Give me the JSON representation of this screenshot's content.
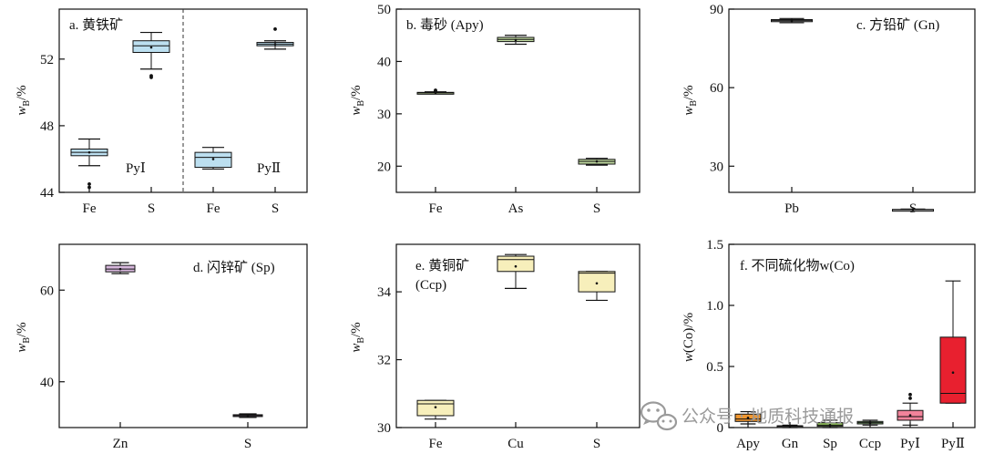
{
  "watermark": {
    "text": "公众号 · 地质科技通报",
    "icon": "wechat-icon"
  },
  "chart_data": [
    {
      "id": "a",
      "type": "box",
      "title": "a. 黄铁矿",
      "ylabel": {
        "var": "w",
        "sub": "B",
        "unit": "/%"
      },
      "ylim": [
        44,
        55
      ],
      "yticks": [
        44,
        48,
        52
      ],
      "grid": false,
      "divider": true,
      "groups": [
        {
          "label": "PyⅠ",
          "between": [
            0,
            1
          ]
        },
        {
          "label": "PyⅡ",
          "between": [
            2,
            3
          ]
        }
      ],
      "categories": [
        "Fe",
        "S",
        "Fe",
        "S"
      ],
      "series": [
        {
          "group": "PyⅠ",
          "color": "#bcdff0",
          "boxes": [
            {
              "category": "Fe",
              "min": 45.6,
              "q1": 46.2,
              "median": 46.4,
              "q3": 46.6,
              "max": 47.2,
              "mean": 46.4,
              "outliers": [
                44.5,
                44.3
              ]
            },
            {
              "category": "S",
              "min": 51.4,
              "q1": 52.4,
              "median": 52.8,
              "q3": 53.1,
              "max": 53.6,
              "mean": 52.7,
              "outliers": [
                51.0,
                50.9
              ]
            }
          ]
        },
        {
          "group": "PyⅡ",
          "color": "#bcdff0",
          "boxes": [
            {
              "category": "Fe",
              "min": 45.4,
              "q1": 45.5,
              "median": 46.1,
              "q3": 46.4,
              "max": 46.7,
              "mean": 46.0,
              "outliers": []
            },
            {
              "category": "S",
              "min": 52.6,
              "q1": 52.8,
              "median": 52.9,
              "q3": 53.0,
              "max": 53.1,
              "mean": 52.9,
              "outliers": [
                53.8
              ]
            }
          ]
        }
      ]
    },
    {
      "id": "b",
      "type": "box",
      "title": "b. 毒砂 (Apy)",
      "ylabel": {
        "var": "w",
        "sub": "B",
        "unit": "/%"
      },
      "ylim": [
        15,
        50
      ],
      "yticks": [
        20,
        30,
        40,
        50
      ],
      "grid": false,
      "categories": [
        "Fe",
        "As",
        "S"
      ],
      "series": [
        {
          "color": "#c5dfa4",
          "boxes": [
            {
              "category": "Fe",
              "min": 33.9,
              "q1": 33.95,
              "median": 34.0,
              "q3": 34.1,
              "max": 34.2,
              "mean": 34.0,
              "outliers": [
                34.5,
                34.3
              ]
            },
            {
              "category": "As",
              "min": 43.3,
              "q1": 43.8,
              "median": 44.2,
              "q3": 44.6,
              "max": 45.0,
              "mean": 44.1,
              "outliers": []
            },
            {
              "category": "S",
              "min": 20.2,
              "q1": 20.4,
              "median": 20.9,
              "q3": 21.3,
              "max": 21.5,
              "mean": 20.9,
              "outliers": []
            }
          ]
        }
      ]
    },
    {
      "id": "c",
      "type": "box",
      "title": "c. 方铅矿 (Gn)",
      "ylabel": {
        "var": "w",
        "sub": "B",
        "unit": "/%"
      },
      "ylim": [
        20,
        90
      ],
      "yticks": [
        30,
        60,
        90
      ],
      "grid": false,
      "categories": [
        "Pb",
        "S"
      ],
      "series": [
        {
          "color": "#e8e8e8",
          "boxes": [
            {
              "category": "Pb",
              "min": 84.8,
              "q1": 85.2,
              "median": 85.6,
              "q3": 86.0,
              "max": 86.4,
              "mean": 85.6,
              "outliers": []
            },
            {
              "category": "S",
              "min": 13.2,
              "q1": 13.3,
              "median": 13.4,
              "q3": 13.5,
              "max": 13.6,
              "mean": 13.4,
              "outliers": []
            }
          ]
        }
      ]
    },
    {
      "id": "d",
      "type": "box",
      "title": "d. 闪锌矿 (Sp)",
      "ylabel": {
        "var": "w",
        "sub": "B",
        "unit": "/%"
      },
      "ylim": [
        30,
        70
      ],
      "yticks": [
        40,
        60
      ],
      "grid": false,
      "categories": [
        "Zn",
        "S"
      ],
      "series": [
        {
          "color": "#d7b7dc",
          "boxes": [
            {
              "category": "Zn",
              "min": 63.6,
              "q1": 64.0,
              "median": 64.6,
              "q3": 65.4,
              "max": 66.0,
              "mean": 64.6,
              "outliers": []
            },
            {
              "category": "S",
              "min": 32.2,
              "q1": 32.4,
              "median": 32.6,
              "q3": 32.8,
              "max": 33.0,
              "mean": 32.6,
              "outliers": []
            }
          ]
        }
      ]
    },
    {
      "id": "e",
      "type": "box",
      "title": "e. 黄铜矿",
      "title2": "(Ccp)",
      "ylabel": {
        "var": "w",
        "sub": "B",
        "unit": "/%"
      },
      "ylim": [
        30,
        35.4
      ],
      "yticks": [
        30,
        32,
        34
      ],
      "grid": false,
      "categories": [
        "Fe",
        "Cu",
        "S"
      ],
      "series": [
        {
          "color": "#f7efbb",
          "boxes": [
            {
              "category": "Fe",
              "min": 30.25,
              "q1": 30.35,
              "median": 30.7,
              "q3": 30.8,
              "max": 30.8,
              "mean": 30.6,
              "outliers": []
            },
            {
              "category": "Cu",
              "min": 34.1,
              "q1": 34.6,
              "median": 34.95,
              "q3": 35.05,
              "max": 35.1,
              "mean": 34.75,
              "outliers": []
            },
            {
              "category": "S",
              "min": 33.75,
              "q1": 34.0,
              "median": 34.55,
              "q3": 34.6,
              "max": 34.6,
              "mean": 34.25,
              "outliers": []
            }
          ]
        }
      ]
    },
    {
      "id": "f",
      "type": "box",
      "title": "f. 不同硫化物w(Co)",
      "ylabel": {
        "var": "w",
        "paren": "(Co)/%"
      },
      "ylim": [
        0,
        1.5
      ],
      "yticks": [
        0,
        0.5,
        1.0,
        1.5
      ],
      "ytick_labels": [
        "0",
        "0.5",
        "1.0",
        "1.5"
      ],
      "grid": false,
      "categories": [
        "Apy",
        "Gn",
        "Sp",
        "Ccp",
        "PyⅠ",
        "PyⅡ"
      ],
      "series": [
        {
          "boxes": [
            {
              "category": "Apy",
              "color": "#ef9630",
              "min": 0.03,
              "q1": 0.05,
              "median": 0.07,
              "q3": 0.11,
              "max": 0.13,
              "mean": 0.08,
              "outliers": []
            },
            {
              "category": "Gn",
              "color": "#7a7a7a",
              "min": 0.0,
              "q1": 0.005,
              "median": 0.01,
              "q3": 0.015,
              "max": 0.02,
              "mean": 0.01,
              "outliers": []
            },
            {
              "category": "Sp",
              "color": "#8fbf5a",
              "min": 0.0,
              "q1": 0.01,
              "median": 0.02,
              "q3": 0.04,
              "max": 0.06,
              "mean": 0.02,
              "outliers": []
            },
            {
              "category": "Ccp",
              "color": "#9bd38a",
              "min": 0.02,
              "q1": 0.03,
              "median": 0.04,
              "q3": 0.05,
              "max": 0.06,
              "mean": 0.04,
              "outliers": []
            },
            {
              "category": "PyⅠ",
              "color": "#f2839b",
              "min": 0.02,
              "q1": 0.06,
              "median": 0.09,
              "q3": 0.14,
              "max": 0.2,
              "mean": 0.1,
              "outliers": [
                0.24,
                0.27
              ]
            },
            {
              "category": "PyⅡ",
              "color": "#e8202f",
              "min": 0.2,
              "q1": 0.2,
              "median": 0.28,
              "q3": 0.74,
              "max": 1.2,
              "mean": 0.45,
              "outliers": []
            }
          ]
        }
      ]
    }
  ]
}
